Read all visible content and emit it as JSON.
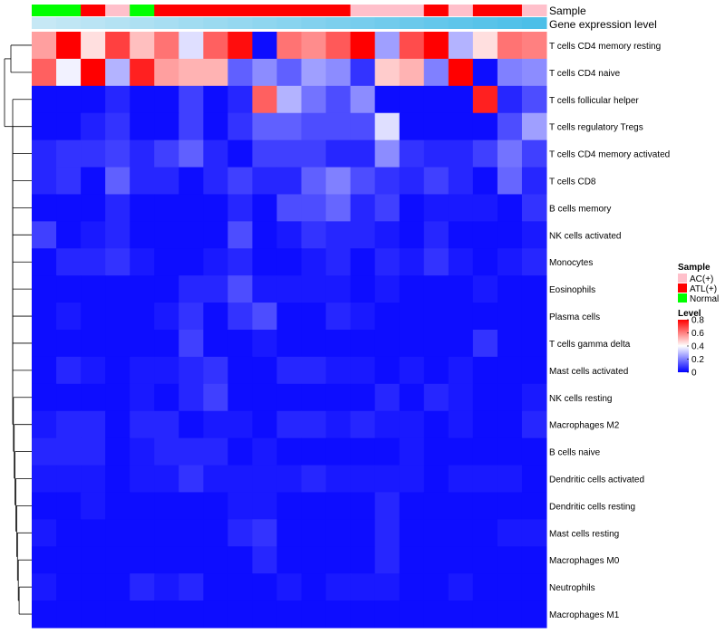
{
  "chart_data": {
    "type": "heatmap",
    "annotation_labels": [
      "Sample",
      "Gene expression level"
    ],
    "rows": [
      "T cells CD4 memory resting",
      "T cells CD4 naive",
      "T cells follicular helper",
      "T cells regulatory  Tregs",
      "T cells CD4 memory activated",
      "T cells CD8",
      "B cells memory",
      "NK cells activated",
      "Monocytes",
      "Eosinophils",
      "Plasma cells",
      "T cells gamma delta",
      "Mast cells activated",
      "NK cells resting",
      "Macrophages M2",
      "B cells naive",
      "Dendritic cells activated",
      "Dendritic cells resting",
      "Mast cells resting",
      "Macrophages M0",
      "Neutrophils",
      "Macrophages M1"
    ],
    "sample_groups": [
      "Normal",
      "Normal",
      "ATL(+)",
      "AC(+)",
      "Normal",
      "ATL(+)",
      "ATL(+)",
      "ATL(+)",
      "ATL(+)",
      "ATL(+)",
      "ATL(+)",
      "ATL(+)",
      "ATL(+)",
      "AC(+)",
      "AC(+)",
      "AC(+)",
      "ATL(+)",
      "AC(+)",
      "ATL(+)",
      "ATL(+)",
      "AC(+)"
    ],
    "gene_expression_level": [
      0.02,
      0.06,
      0.1,
      0.14,
      0.18,
      0.22,
      0.26,
      0.3,
      0.34,
      0.38,
      0.42,
      0.46,
      0.5,
      0.54,
      0.58,
      0.62,
      0.66,
      0.7,
      0.74,
      0.78,
      0.82
    ],
    "matrix": [
      [
        0.55,
        0.8,
        0.45,
        0.7,
        0.5,
        0.62,
        0.35,
        0.65,
        0.78,
        0.02,
        0.62,
        0.58,
        0.66,
        0.8,
        0.25,
        0.68,
        0.8,
        0.28,
        0.45,
        0.62,
        0.6
      ],
      [
        0.65,
        0.38,
        0.8,
        0.28,
        0.75,
        0.55,
        0.52,
        0.52,
        0.15,
        0.22,
        0.15,
        0.25,
        0.22,
        0.08,
        0.48,
        0.52,
        0.2,
        0.8,
        0.02,
        0.2,
        0.22
      ],
      [
        0.02,
        0.02,
        0.02,
        0.06,
        0.02,
        0.02,
        0.1,
        0.02,
        0.06,
        0.65,
        0.28,
        0.18,
        0.12,
        0.22,
        0.02,
        0.02,
        0.02,
        0.02,
        0.75,
        0.06,
        0.12
      ],
      [
        0.02,
        0.02,
        0.05,
        0.08,
        0.02,
        0.02,
        0.1,
        0.02,
        0.08,
        0.15,
        0.15,
        0.12,
        0.12,
        0.12,
        0.35,
        0.02,
        0.02,
        0.02,
        0.02,
        0.12,
        0.25
      ],
      [
        0.06,
        0.08,
        0.08,
        0.1,
        0.06,
        0.1,
        0.15,
        0.06,
        0.02,
        0.1,
        0.1,
        0.1,
        0.06,
        0.06,
        0.22,
        0.08,
        0.06,
        0.06,
        0.1,
        0.18,
        0.1
      ],
      [
        0.06,
        0.08,
        0.02,
        0.15,
        0.06,
        0.06,
        0.02,
        0.06,
        0.1,
        0.06,
        0.06,
        0.15,
        0.2,
        0.12,
        0.08,
        0.06,
        0.1,
        0.06,
        0.02,
        0.16,
        0.06
      ],
      [
        0.02,
        0.02,
        0.02,
        0.06,
        0.02,
        0.02,
        0.02,
        0.02,
        0.06,
        0.02,
        0.12,
        0.12,
        0.16,
        0.06,
        0.1,
        0.02,
        0.04,
        0.04,
        0.04,
        0.02,
        0.08
      ],
      [
        0.1,
        0.02,
        0.04,
        0.06,
        0.02,
        0.02,
        0.02,
        0.02,
        0.12,
        0.02,
        0.04,
        0.08,
        0.06,
        0.06,
        0.04,
        0.02,
        0.06,
        0.02,
        0.02,
        0.02,
        0.04
      ],
      [
        0.02,
        0.06,
        0.06,
        0.08,
        0.04,
        0.02,
        0.02,
        0.04,
        0.06,
        0.02,
        0.02,
        0.04,
        0.06,
        0.02,
        0.06,
        0.04,
        0.08,
        0.04,
        0.02,
        0.04,
        0.06
      ],
      [
        0.02,
        0.02,
        0.02,
        0.02,
        0.02,
        0.02,
        0.06,
        0.06,
        0.12,
        0.04,
        0.04,
        0.04,
        0.04,
        0.02,
        0.04,
        0.02,
        0.02,
        0.02,
        0.04,
        0.02,
        0.02
      ],
      [
        0.02,
        0.04,
        0.02,
        0.02,
        0.02,
        0.04,
        0.08,
        0.02,
        0.08,
        0.12,
        0.02,
        0.02,
        0.06,
        0.04,
        0.02,
        0.02,
        0.02,
        0.02,
        0.02,
        0.02,
        0.02
      ],
      [
        0.02,
        0.02,
        0.02,
        0.02,
        0.02,
        0.02,
        0.1,
        0.02,
        0.02,
        0.04,
        0.02,
        0.02,
        0.02,
        0.02,
        0.02,
        0.02,
        0.02,
        0.02,
        0.08,
        0.02,
        0.02
      ],
      [
        0.02,
        0.06,
        0.04,
        0.02,
        0.04,
        0.04,
        0.06,
        0.08,
        0.02,
        0.02,
        0.06,
        0.06,
        0.04,
        0.04,
        0.02,
        0.04,
        0.02,
        0.04,
        0.02,
        0.02,
        0.02
      ],
      [
        0.02,
        0.02,
        0.02,
        0.02,
        0.04,
        0.02,
        0.06,
        0.1,
        0.02,
        0.02,
        0.02,
        0.02,
        0.02,
        0.02,
        0.06,
        0.02,
        0.06,
        0.04,
        0.02,
        0.02,
        0.04
      ],
      [
        0.04,
        0.06,
        0.06,
        0.02,
        0.06,
        0.06,
        0.02,
        0.04,
        0.04,
        0.02,
        0.06,
        0.06,
        0.04,
        0.06,
        0.04,
        0.04,
        0.02,
        0.04,
        0.02,
        0.02,
        0.06
      ],
      [
        0.06,
        0.06,
        0.06,
        0.02,
        0.04,
        0.06,
        0.06,
        0.06,
        0.02,
        0.04,
        0.02,
        0.02,
        0.02,
        0.02,
        0.02,
        0.04,
        0.02,
        0.02,
        0.02,
        0.02,
        0.02
      ],
      [
        0.04,
        0.04,
        0.04,
        0.02,
        0.04,
        0.04,
        0.08,
        0.04,
        0.04,
        0.04,
        0.04,
        0.06,
        0.04,
        0.04,
        0.04,
        0.04,
        0.02,
        0.04,
        0.04,
        0.04,
        0.02
      ],
      [
        0.02,
        0.02,
        0.04,
        0.02,
        0.02,
        0.02,
        0.02,
        0.02,
        0.04,
        0.04,
        0.02,
        0.02,
        0.02,
        0.02,
        0.06,
        0.02,
        0.02,
        0.02,
        0.02,
        0.02,
        0.02
      ],
      [
        0.04,
        0.02,
        0.02,
        0.02,
        0.02,
        0.02,
        0.02,
        0.02,
        0.06,
        0.08,
        0.02,
        0.02,
        0.02,
        0.02,
        0.06,
        0.02,
        0.02,
        0.02,
        0.02,
        0.04,
        0.04
      ],
      [
        0.02,
        0.02,
        0.02,
        0.02,
        0.02,
        0.02,
        0.02,
        0.02,
        0.02,
        0.06,
        0.02,
        0.02,
        0.02,
        0.02,
        0.06,
        0.02,
        0.02,
        0.02,
        0.02,
        0.02,
        0.02
      ],
      [
        0.04,
        0.02,
        0.02,
        0.02,
        0.06,
        0.04,
        0.06,
        0.02,
        0.02,
        0.02,
        0.04,
        0.02,
        0.04,
        0.04,
        0.04,
        0.02,
        0.02,
        0.04,
        0.02,
        0.02,
        0.02
      ],
      [
        0.02,
        0.02,
        0.02,
        0.02,
        0.02,
        0.02,
        0.02,
        0.02,
        0.02,
        0.02,
        0.02,
        0.02,
        0.02,
        0.02,
        0.02,
        0.02,
        0.02,
        0.02,
        0.02,
        0.02,
        0.02
      ]
    ],
    "color_scale": {
      "min": 0,
      "mid": 0.4,
      "max": 0.8,
      "low": "#0000ff",
      "mid_color": "#ffffff",
      "high": "#ff0000"
    },
    "group_colors": {
      "AC(+)": "#ffc0cb",
      "ATL(+)": "#ff0000",
      "Normal": "#00ff00"
    },
    "expression_colors": {
      "low": "#c6e8f5",
      "high": "#4cbfe8"
    },
    "legend": {
      "sample_title": "Sample",
      "sample_entries": [
        "AC(+)",
        "ATL(+)",
        "Normal"
      ],
      "level_title": "Level",
      "level_ticks": [
        "0.8",
        "0.6",
        "0.4",
        "0.2",
        "0"
      ],
      "position": "right"
    }
  }
}
